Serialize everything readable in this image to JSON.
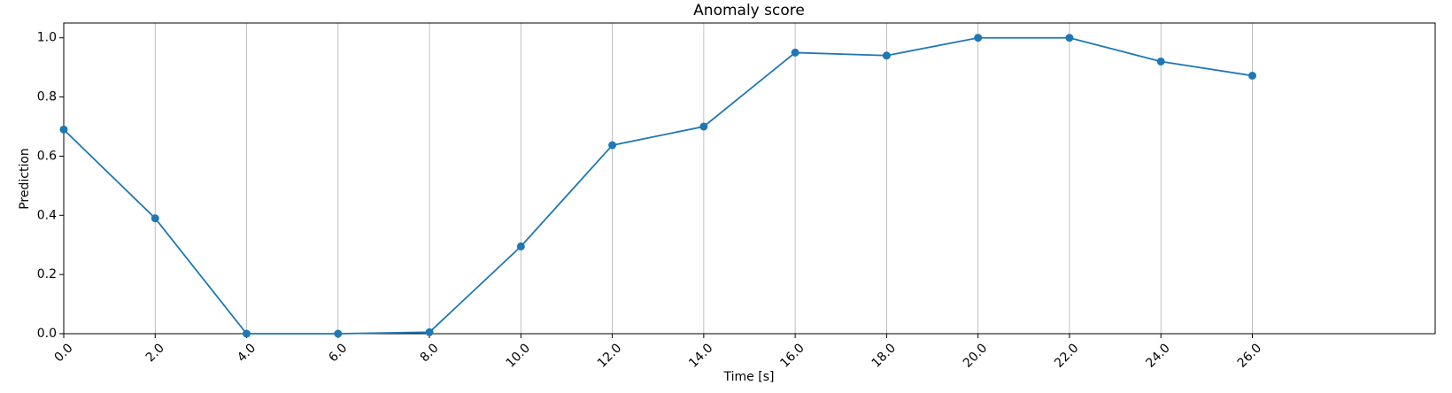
{
  "chart_data": {
    "type": "line",
    "title": "Anomaly score",
    "x_label": "Time [s]",
    "y_label": "Prediction",
    "x": [
      0,
      2,
      4,
      6,
      8,
      10,
      12,
      14,
      16,
      18,
      20,
      22,
      24,
      26
    ],
    "series": [
      {
        "color": "#1f77b4",
        "values": [
          0.69,
          0.39,
          0.0,
          0.0,
          0.005,
          0.295,
          0.637,
          0.7,
          0.95,
          0.94,
          1.0,
          1.0,
          0.92,
          0.872
        ]
      }
    ],
    "xlim": [
      0,
      30
    ],
    "ylim": [
      0,
      1.05
    ],
    "xticks": [
      {
        "value": 0,
        "label": "0.0"
      },
      {
        "value": 2,
        "label": "2.0"
      },
      {
        "value": 4,
        "label": "4.0"
      },
      {
        "value": 6,
        "label": "6.0"
      },
      {
        "value": 8,
        "label": "8.0"
      },
      {
        "value": 10,
        "label": "10.0"
      },
      {
        "value": 12,
        "label": "12.0"
      },
      {
        "value": 14,
        "label": "14.0"
      },
      {
        "value": 16,
        "label": "16.0"
      },
      {
        "value": 18,
        "label": "18.0"
      },
      {
        "value": 20,
        "label": "20.0"
      },
      {
        "value": 22,
        "label": "22.0"
      },
      {
        "value": 24,
        "label": "24.0"
      },
      {
        "value": 26,
        "label": "26.0"
      }
    ],
    "yticks": [
      {
        "value": 0,
        "label": "0.0"
      },
      {
        "value": 0.2,
        "label": "0.2"
      },
      {
        "value": 0.4,
        "label": "0.4"
      },
      {
        "value": 0.6,
        "label": "0.6"
      },
      {
        "value": 0.8,
        "label": "0.8"
      },
      {
        "value": 1.0,
        "label": "1.0"
      }
    ],
    "grid": "x"
  }
}
